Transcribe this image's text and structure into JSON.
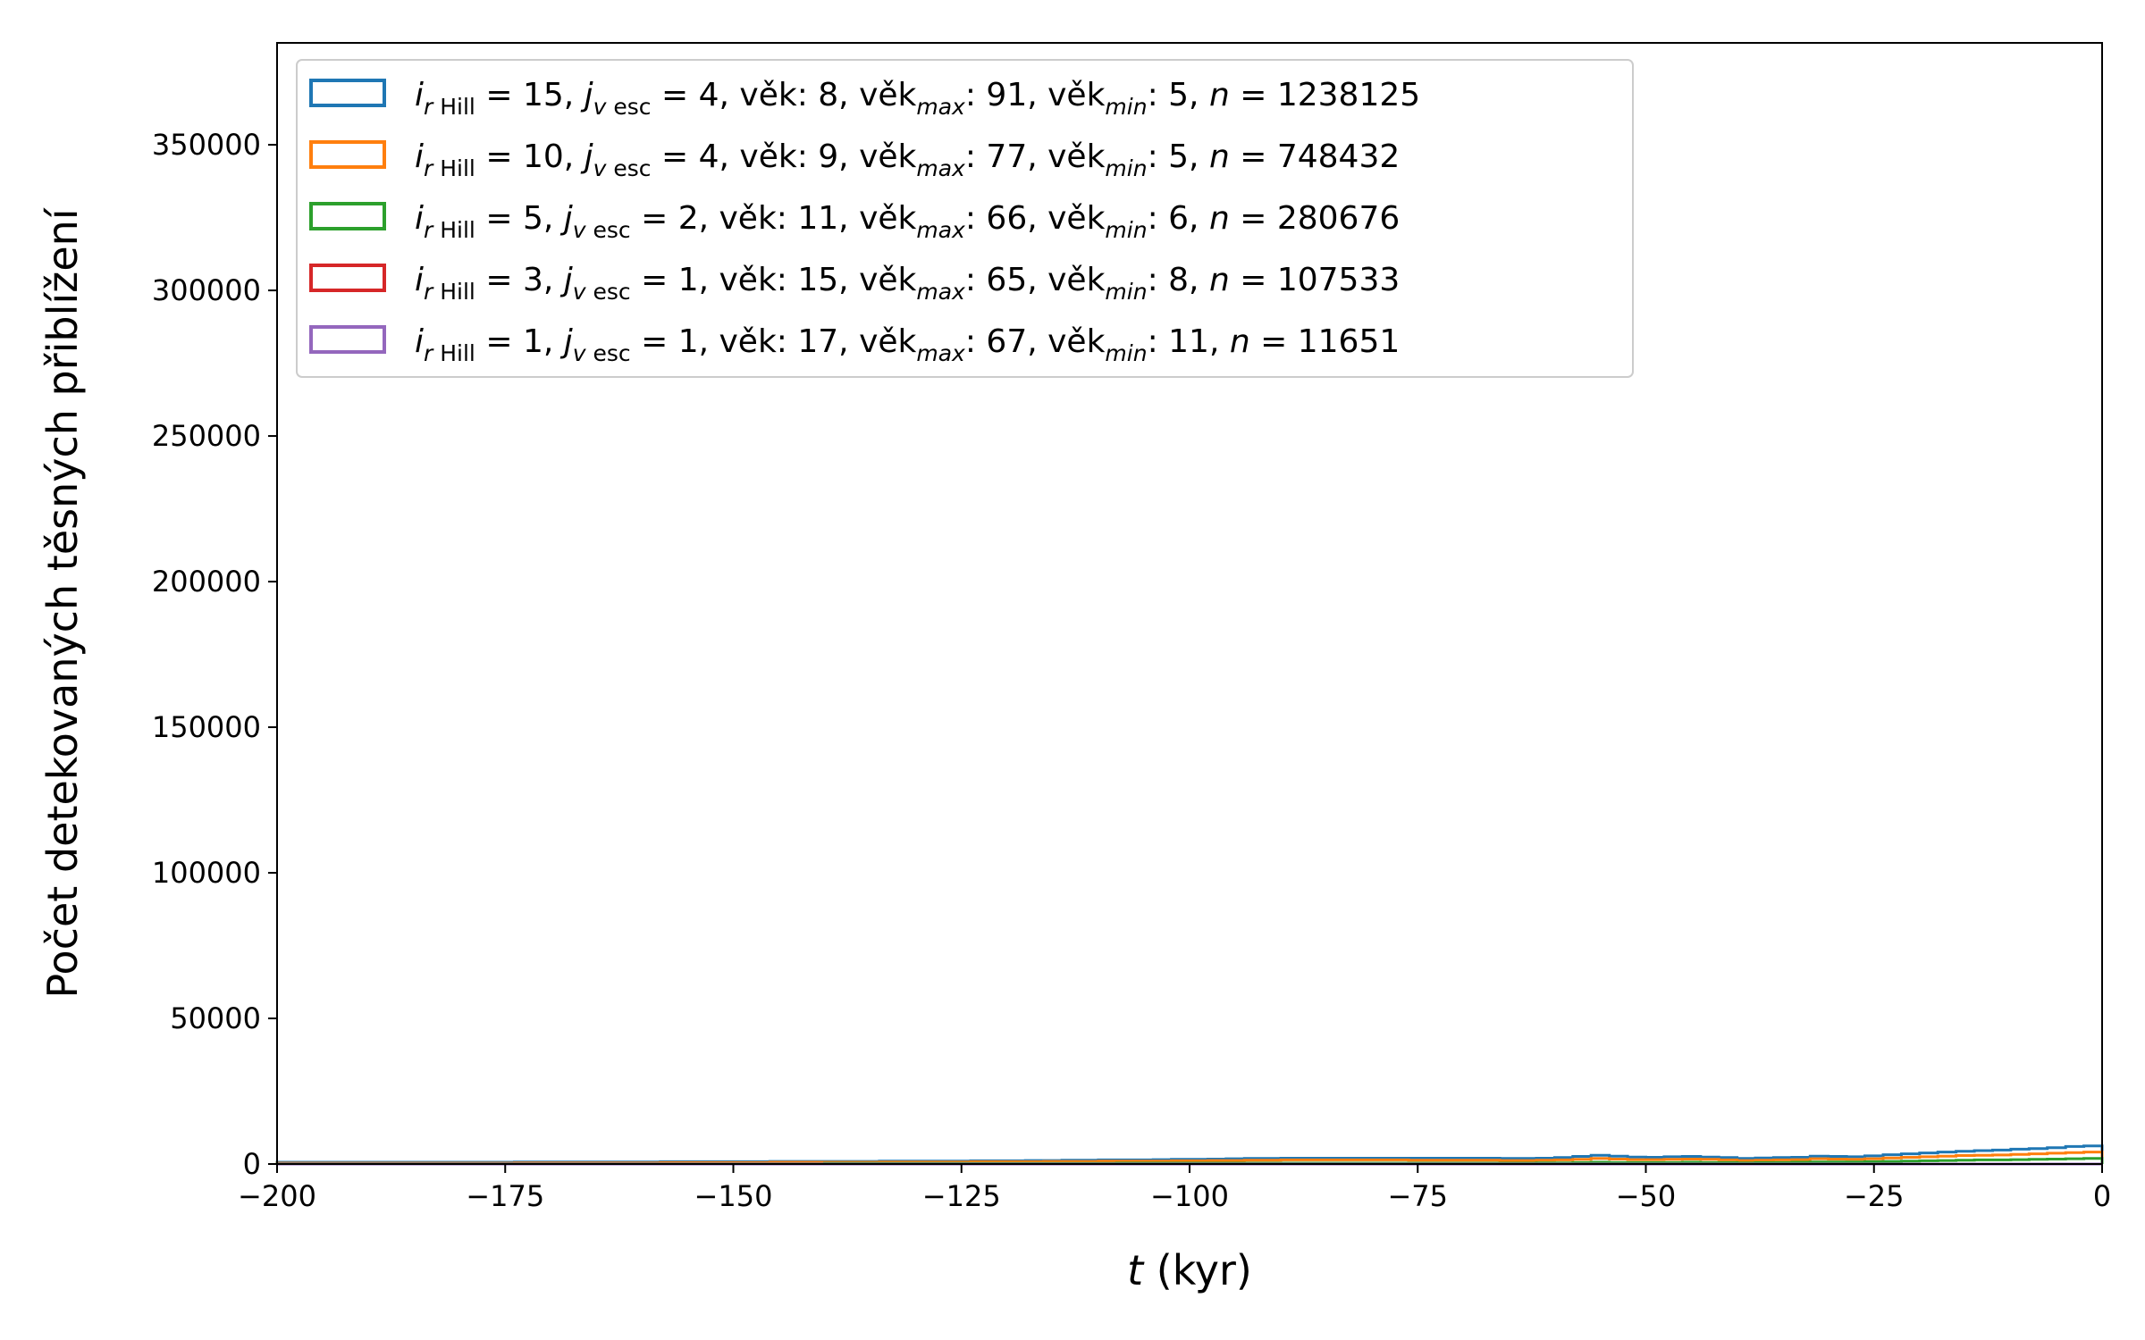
{
  "chart_data": {
    "type": "histogram",
    "xlabel_var": "t",
    "xlabel_unit": " (kyr)",
    "ylabel": "Počet detekovaných těsných přiblížení",
    "xlim": [
      -200,
      0
    ],
    "ylim": [
      0,
      385000
    ],
    "x_ticks": [
      -200,
      -175,
      -150,
      -125,
      -100,
      -75,
      -50,
      -25,
      0
    ],
    "y_ticks": [
      0,
      50000,
      100000,
      150000,
      200000,
      250000,
      300000,
      350000
    ],
    "grid": false,
    "legend_position": "upper-left",
    "bin_width": 2,
    "bin_start": -200,
    "series": [
      {
        "color": "#1f77b4",
        "legend": {
          "ir": "15",
          "jv": "4",
          "vek": "8",
          "vekmax": "91",
          "vekmin": "5",
          "n": "1238125"
        },
        "values": [
          600,
          600,
          600,
          600,
          600,
          600,
          600,
          600,
          600,
          600,
          600,
          600,
          600,
          700,
          700,
          700,
          700,
          700,
          700,
          700,
          700,
          800,
          800,
          800,
          800,
          800,
          800,
          900,
          900,
          900,
          900,
          900,
          900,
          1000,
          1000,
          1000,
          1000,
          1000,
          1100,
          1100,
          1100,
          1200,
          1200,
          1300,
          1300,
          1400,
          1400,
          1400,
          1500,
          1600,
          1600,
          1700,
          1800,
          1900,
          1900,
          2000,
          2000,
          2000,
          2000,
          2000,
          2000,
          2000,
          2000,
          2000,
          2000,
          2000,
          2000,
          1900,
          1900,
          2000,
          2200,
          2600,
          3000,
          2700,
          2400,
          2300,
          2500,
          2600,
          2400,
          2200,
          1900,
          2100,
          2200,
          2300,
          2700,
          2600,
          2500,
          2800,
          3200,
          3500,
          3800,
          4100,
          4400,
          4600,
          4800,
          5100,
          5300,
          5600,
          6000,
          6200
        ]
      },
      {
        "color": "#ff7f0e",
        "legend": {
          "ir": "10",
          "jv": "4",
          "vek": "9",
          "vekmax": "77",
          "vekmin": "5",
          "n": "748432"
        },
        "values": [
          300,
          300,
          300,
          300,
          300,
          300,
          300,
          300,
          300,
          300,
          300,
          300,
          300,
          400,
          400,
          400,
          400,
          400,
          400,
          400,
          400,
          500,
          500,
          500,
          500,
          500,
          500,
          600,
          600,
          600,
          600,
          600,
          600,
          700,
          700,
          700,
          700,
          700,
          800,
          800,
          800,
          800,
          900,
          900,
          900,
          1000,
          1000,
          1000,
          1000,
          1100,
          1100,
          1200,
          1200,
          1300,
          1300,
          1400,
          1400,
          1400,
          1400,
          1400,
          1400,
          1400,
          1300,
          1300,
          1300,
          1300,
          1300,
          1200,
          1200,
          1300,
          1400,
          1600,
          1900,
          1700,
          1500,
          1500,
          1600,
          1700,
          1600,
          1400,
          1200,
          1300,
          1400,
          1500,
          1800,
          1700,
          1600,
          1800,
          2100,
          2300,
          2500,
          2700,
          2900,
          3000,
          3100,
          3300,
          3500,
          3700,
          3900,
          4100
        ]
      },
      {
        "color": "#2ca02c",
        "legend": {
          "ir": " 5",
          "jv": "2",
          "vek": "11",
          "vekmax": "66",
          "vekmin": "6",
          "n": "280676"
        },
        "values": [
          100,
          100,
          100,
          100,
          100,
          100,
          100,
          100,
          100,
          100,
          100,
          100,
          100,
          100,
          100,
          100,
          100,
          100,
          100,
          100,
          100,
          100,
          100,
          100,
          100,
          100,
          100,
          100,
          100,
          100,
          200,
          200,
          200,
          200,
          200,
          200,
          200,
          200,
          200,
          200,
          200,
          200,
          200,
          200,
          200,
          200,
          300,
          300,
          300,
          300,
          300,
          300,
          300,
          300,
          300,
          300,
          300,
          300,
          300,
          300,
          300,
          300,
          300,
          300,
          300,
          300,
          300,
          300,
          300,
          400,
          400,
          500,
          600,
          500,
          500,
          500,
          500,
          600,
          500,
          500,
          400,
          500,
          500,
          600,
          700,
          700,
          700,
          800,
          900,
          1000,
          1100,
          1200,
          1300,
          1400,
          1400,
          1500,
          1600,
          1700,
          1800,
          1900
        ]
      },
      {
        "color": "#d62728",
        "legend": {
          "ir": " 3",
          "jv": "1",
          "vek": "15",
          "vekmax": "65",
          "vekmin": "8",
          "n": "107533"
        },
        "values": [
          0,
          0,
          0,
          0,
          0,
          0,
          0,
          0,
          0,
          0,
          0,
          0,
          0,
          0,
          0,
          0,
          0,
          0,
          0,
          0,
          0,
          0,
          0,
          0,
          0,
          0,
          0,
          0,
          0,
          0,
          0,
          0,
          0,
          0,
          0,
          0,
          0,
          0,
          0,
          0,
          0,
          0,
          0,
          0,
          0,
          0,
          0,
          0,
          0,
          0,
          0,
          0,
          0,
          0,
          0,
          0,
          0,
          0,
          0,
          0,
          0,
          0,
          0,
          0,
          0,
          0,
          0,
          0,
          0,
          0,
          0,
          0,
          0,
          0,
          0,
          0,
          0,
          0,
          0,
          0,
          0,
          0,
          0,
          0,
          0,
          0,
          0,
          0,
          0,
          0,
          0,
          0,
          0,
          0,
          0,
          0,
          0,
          0,
          0,
          0
        ]
      },
      {
        "color": "#9467bd",
        "legend": {
          "ir": " 1",
          "jv": "1",
          "vek": "17",
          "vekmax": "67",
          "vekmin": "11",
          "n": "11651"
        },
        "values": [
          0,
          0,
          0,
          0,
          0,
          0,
          0,
          0,
          0,
          0,
          0,
          0,
          0,
          0,
          0,
          0,
          0,
          0,
          0,
          0,
          0,
          0,
          0,
          0,
          0,
          0,
          0,
          0,
          0,
          0,
          0,
          0,
          0,
          0,
          0,
          0,
          0,
          0,
          0,
          0,
          0,
          0,
          0,
          0,
          0,
          0,
          0,
          0,
          0,
          0,
          0,
          0,
          0,
          0,
          0,
          0,
          0,
          0,
          0,
          0,
          0,
          0,
          0,
          0,
          0,
          0,
          0,
          0,
          0,
          0,
          0,
          0,
          0,
          0,
          0,
          0,
          0,
          0,
          0,
          0,
          0,
          0,
          0,
          0,
          0,
          0,
          0,
          0,
          0,
          0,
          0,
          0,
          0,
          0,
          0,
          0,
          0,
          0,
          0,
          0
        ]
      }
    ]
  }
}
